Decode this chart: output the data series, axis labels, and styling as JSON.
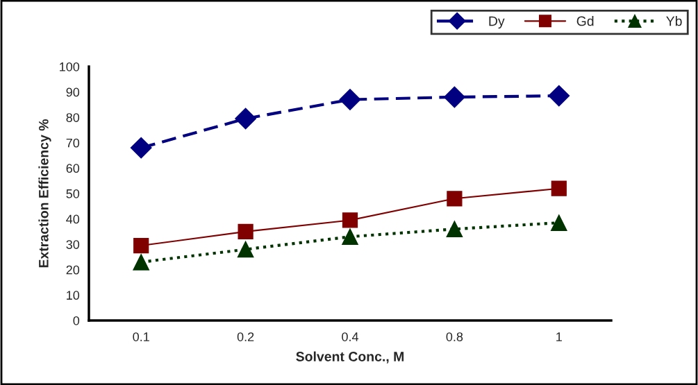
{
  "chart_data": {
    "type": "line",
    "xlabel": "Solvent Conc., M",
    "ylabel": "Extraction Efficiency %",
    "categories": [
      "0.1",
      "0.2",
      "0.4",
      "0.8",
      "1"
    ],
    "series": [
      {
        "name": "Dy",
        "color": "#000080",
        "values": [
          68,
          79.5,
          87,
          88,
          88.5
        ],
        "marker": "diamond",
        "line_style": "dashed"
      },
      {
        "name": "Gd",
        "color": "#800000",
        "values": [
          29.5,
          35,
          39.5,
          48,
          52
        ],
        "marker": "square",
        "line_style": "solid"
      },
      {
        "name": "Yb",
        "color": "#003300",
        "values": [
          23,
          28,
          33,
          36,
          38.5
        ],
        "marker": "triangle",
        "line_style": "dotted"
      }
    ],
    "ylim": [
      0,
      100
    ],
    "yticks": [
      0,
      10,
      20,
      30,
      40,
      50,
      60,
      70,
      80,
      90,
      100
    ],
    "grid": false,
    "legend": "top right"
  }
}
